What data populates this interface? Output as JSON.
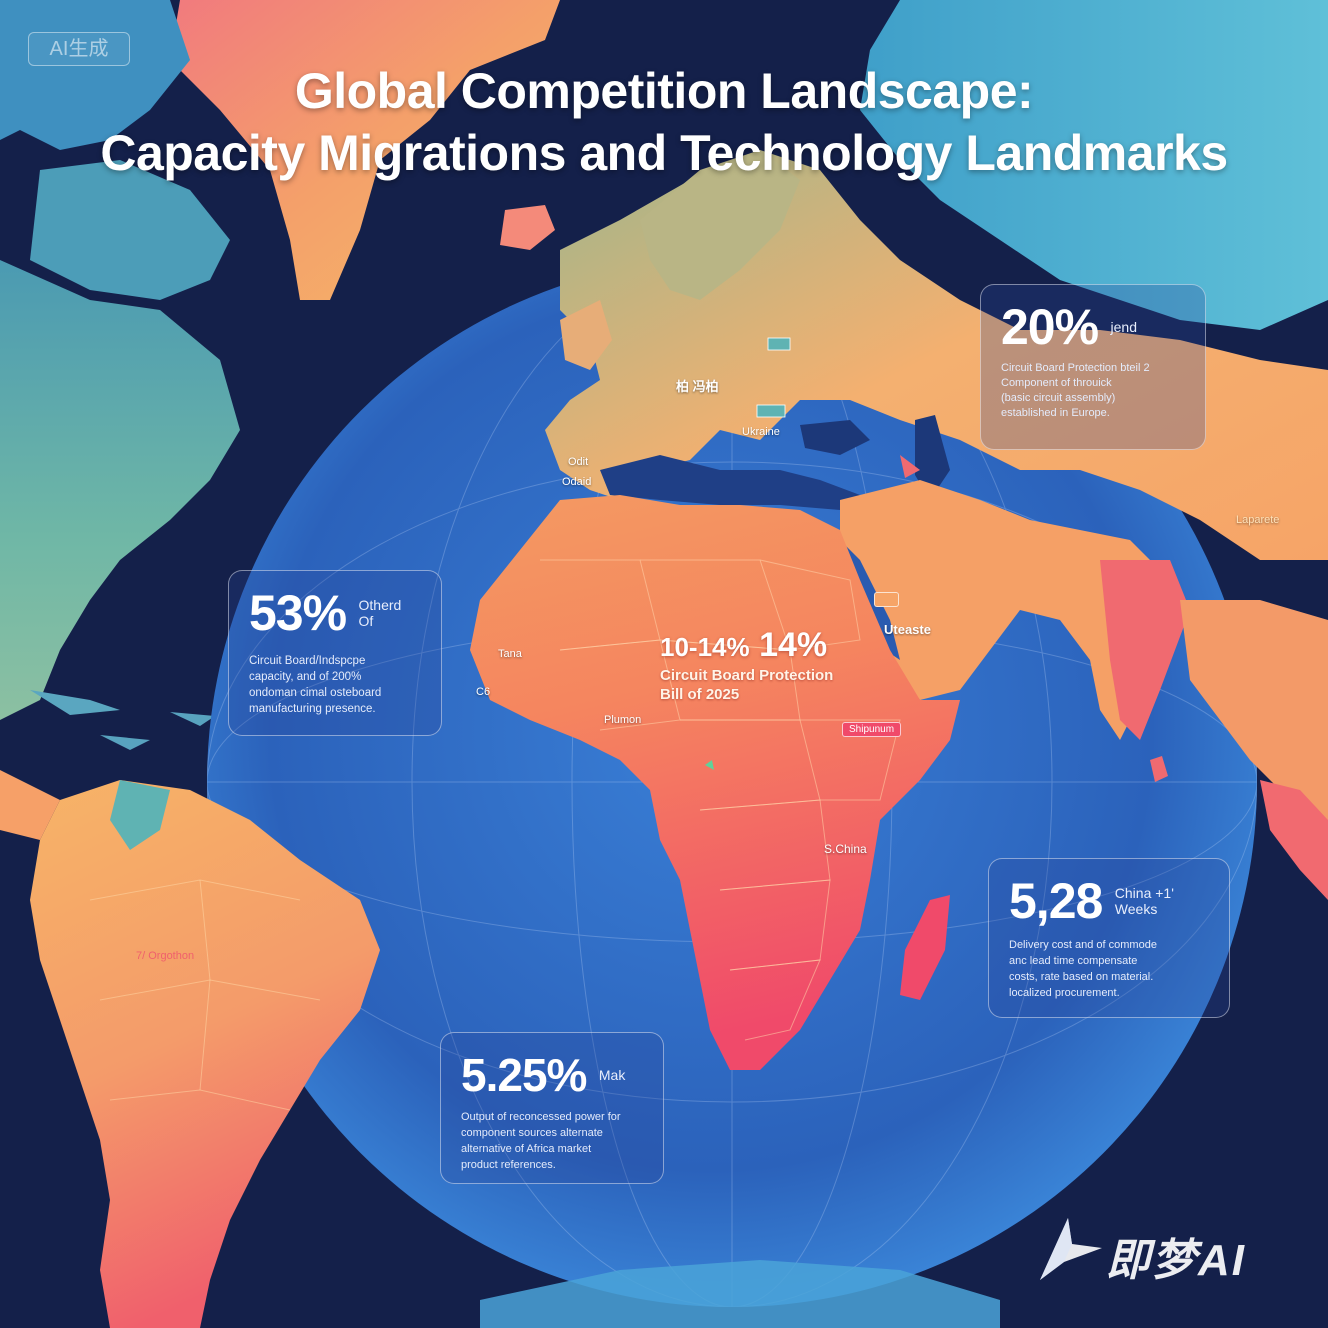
{
  "badge": "AI生成",
  "title": {
    "line1": "Global Competition Landscape:",
    "line2": "Capacity Migrations and Technology Landmarks"
  },
  "stats": {
    "left": {
      "value": "53%",
      "tag_line1": "Otherd",
      "tag_line2": "Of",
      "desc": [
        "Circuit Board/Indspcpe",
        "capacity, and of 200%",
        "ondoman cimal osteboard",
        "manufacturing presence."
      ]
    },
    "center": {
      "value_small": "10-14%",
      "value_large": "14%",
      "sub_line1": "Circuit Board Protection",
      "sub_line2": "Bill of 2025"
    },
    "top_right": {
      "value": "20%",
      "tag": "jend",
      "desc": [
        "Circuit Board Protection bteil 2",
        "Component of throuick",
        "(basic circuit assembly)",
        "established in Europe."
      ]
    },
    "bottom_right": {
      "value": "5,28",
      "tag_line1": "China +1'",
      "tag_line2": "Weeks",
      "desc": [
        "Delivery cost and of commode",
        "anc lead time compensate",
        "costs, rate based on material.",
        "localized procurement."
      ]
    },
    "bottom_center": {
      "value": "5.25%",
      "tag": "Mak",
      "desc": [
        "Output of reconcessed power for",
        "component sources alternate",
        "alternative of Africa market",
        "product references."
      ]
    }
  },
  "places": {
    "berlin": "柏 冯柏",
    "ukraine": "Ukraine",
    "spain_top": "Odit",
    "spain_bottom": "Odaid",
    "morocco": "Tana",
    "nigeria": "Plumon",
    "saudi": "Uteaste",
    "ethiopia": "Shipunum",
    "kenya": "S.China",
    "brazil": "7/ Orgothon",
    "se_asia": "Laparete",
    "west_africa": "C6"
  },
  "watermark": "即梦AI",
  "colors": {
    "ocean": "#14204a",
    "globe": "#2f6dc4",
    "accent_coral": "#f2686e",
    "accent_orange": "#f7a35a",
    "accent_teal": "#5fb3b3",
    "text": "#ffffff"
  }
}
